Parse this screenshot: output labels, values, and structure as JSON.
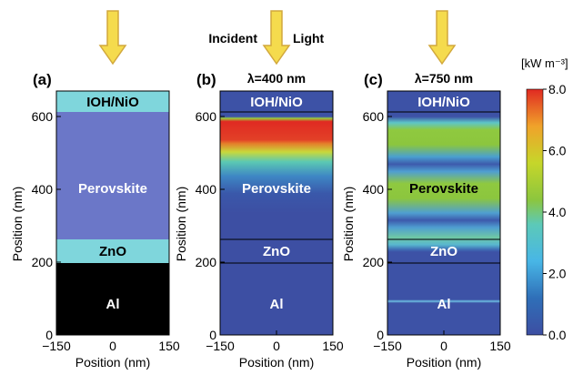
{
  "incident_light": {
    "word1": "Incident",
    "word2": "Light"
  },
  "x_ticks": [
    "−150",
    "0",
    "150"
  ],
  "y_ticks": [
    "0",
    "200",
    "400",
    "600"
  ],
  "y_values": [
    0,
    200,
    400,
    600
  ],
  "axis_labels": {
    "x": "Position (nm)",
    "y": "Position (nm)"
  },
  "panels": [
    {
      "label": "(a)",
      "title": "",
      "layers": {
        "top": "IOH/NiO",
        "absorber": "Perovskite",
        "etl": "ZnO",
        "electrode": "Al"
      }
    },
    {
      "label": "(b)",
      "title": "λ=400 nm",
      "layers": {
        "top": "IOH/NiO",
        "absorber": "Perovskite",
        "etl": "ZnO",
        "electrode": "Al"
      }
    },
    {
      "label": "(c)",
      "title": "λ=750 nm",
      "layers": {
        "top": "IOH/NiO",
        "absorber": "Perovskite",
        "etl": "ZnO",
        "electrode": "Al"
      }
    }
  ],
  "colorbar": {
    "unit": "[kW m⁻³]",
    "ticks": [
      "8.0",
      "6.0",
      "4.0",
      "2.0",
      "0.0"
    ],
    "min": 0,
    "max": 8
  },
  "colors": {
    "ioh_nio": "#7fd6dc",
    "perovskite": "#6b77c8",
    "zno": "#7fd6dc",
    "al": "#000000",
    "field_bg": "#3d52a6",
    "arrow_fill": "#f5db4d",
    "arrow_stroke": "#d2a83d"
  }
}
